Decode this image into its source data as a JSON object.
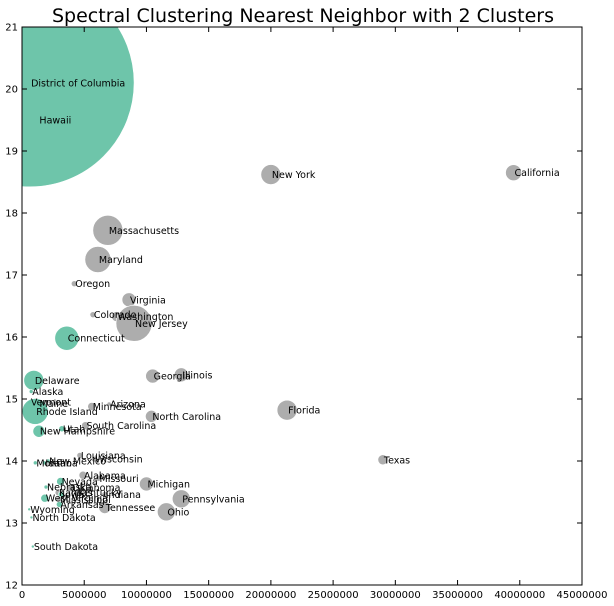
{
  "chart_data": {
    "type": "scatter",
    "title": "Spectral Clustering Nearest Neighbor with 2 Clusters",
    "xlabel": "",
    "ylabel": "",
    "xlim": [
      0,
      45000000
    ],
    "ylim": [
      12,
      21
    ],
    "xticks": [
      "0",
      "5000000",
      "10000000",
      "15000000",
      "20000000",
      "25000000",
      "30000000",
      "35000000",
      "40000000",
      "45000000"
    ],
    "yticks": [
      "12",
      "13",
      "14",
      "15",
      "16",
      "17",
      "18",
      "19",
      "20",
      "21"
    ],
    "grid": false,
    "colors": {
      "cluster_0": "#66c2a5",
      "cluster_1": "#a9a9a9"
    },
    "points": [
      {
        "label": "District of Columbia",
        "x": 650000,
        "y": 20.1,
        "cluster": 0,
        "size": 104
      },
      {
        "label": "Hawaii",
        "x": 1400000,
        "y": 19.5,
        "cluster": 0,
        "size": 0
      },
      {
        "label": "California",
        "x": 39500000,
        "y": 18.65,
        "cluster": 1,
        "size": 8
      },
      {
        "label": "New York",
        "x": 20000000,
        "y": 18.62,
        "cluster": 1,
        "size": 10
      },
      {
        "label": "Massachusetts",
        "x": 6900000,
        "y": 17.72,
        "cluster": 1,
        "size": 15
      },
      {
        "label": "Maryland",
        "x": 6100000,
        "y": 17.25,
        "cluster": 1,
        "size": 13
      },
      {
        "label": "Oregon",
        "x": 4200000,
        "y": 16.86,
        "cluster": 1,
        "size": 3
      },
      {
        "label": "Virginia",
        "x": 8600000,
        "y": 16.6,
        "cluster": 1,
        "size": 7
      },
      {
        "label": "Colorado",
        "x": 5700000,
        "y": 16.36,
        "cluster": 1,
        "size": 3
      },
      {
        "label": "Washington",
        "x": 7600000,
        "y": 16.33,
        "cluster": 1,
        "size": 5
      },
      {
        "label": "New Jersey",
        "x": 9000000,
        "y": 16.22,
        "cluster": 1,
        "size": 18
      },
      {
        "label": "Connecticut",
        "x": 3600000,
        "y": 15.98,
        "cluster": 0,
        "size": 12
      },
      {
        "label": "Delaware",
        "x": 950000,
        "y": 15.3,
        "cluster": 0,
        "size": 10
      },
      {
        "label": "Georgia",
        "x": 10500000,
        "y": 15.37,
        "cluster": 1,
        "size": 7
      },
      {
        "label": "Illinois",
        "x": 12800000,
        "y": 15.39,
        "cluster": 1,
        "size": 7
      },
      {
        "label": "Alaska",
        "x": 740000,
        "y": 15.12,
        "cluster": 0,
        "size": 2
      },
      {
        "label": "Arizona",
        "x": 7000000,
        "y": 14.92,
        "cluster": 1,
        "size": 2
      },
      {
        "label": "Minnesota",
        "x": 5600000,
        "y": 14.88,
        "cluster": 1,
        "size": 4
      },
      {
        "label": "Vermont",
        "x": 630000,
        "y": 14.95,
        "cluster": 0,
        "size": 2
      },
      {
        "label": "Maine",
        "x": 1330000,
        "y": 14.93,
        "cluster": 0,
        "size": 2
      },
      {
        "label": "Rhode Island",
        "x": 1060000,
        "y": 14.8,
        "cluster": 0,
        "size": 13
      },
      {
        "label": "Florida",
        "x": 21300000,
        "y": 14.82,
        "cluster": 1,
        "size": 10
      },
      {
        "label": "North Carolina",
        "x": 10400000,
        "y": 14.72,
        "cluster": 1,
        "size": 6
      },
      {
        "label": "South Carolina",
        "x": 5100000,
        "y": 14.57,
        "cluster": 1,
        "size": 4
      },
      {
        "label": "Utah",
        "x": 3200000,
        "y": 14.52,
        "cluster": 0,
        "size": 3
      },
      {
        "label": "New Hampshire",
        "x": 1360000,
        "y": 14.48,
        "cluster": 0,
        "size": 6
      },
      {
        "label": "Louisiana",
        "x": 4650000,
        "y": 14.09,
        "cluster": 1,
        "size": 3
      },
      {
        "label": "Wisconsin",
        "x": 5800000,
        "y": 14.03,
        "cluster": 1,
        "size": 3
      },
      {
        "label": "New Mexico",
        "x": 2100000,
        "y": 14.0,
        "cluster": 0,
        "size": 2
      },
      {
        "label": "Montana",
        "x": 1070000,
        "y": 13.97,
        "cluster": 0,
        "size": 2
      },
      {
        "label": "Idaho",
        "x": 1800000,
        "y": 13.97,
        "cluster": 0,
        "size": 2
      },
      {
        "label": "Texas",
        "x": 29000000,
        "y": 14.02,
        "cluster": 1,
        "size": 5
      },
      {
        "label": "Alabama",
        "x": 4900000,
        "y": 13.77,
        "cluster": 1,
        "size": 4
      },
      {
        "label": "Missouri",
        "x": 6150000,
        "y": 13.72,
        "cluster": 1,
        "size": 3
      },
      {
        "label": "Nevada",
        "x": 3100000,
        "y": 13.67,
        "cluster": 0,
        "size": 4
      },
      {
        "label": "Michigan",
        "x": 10000000,
        "y": 13.63,
        "cluster": 1,
        "size": 7
      },
      {
        "label": "Nebraska",
        "x": 1930000,
        "y": 13.58,
        "cluster": 0,
        "size": 2
      },
      {
        "label": "Oklahoma",
        "x": 3950000,
        "y": 13.57,
        "cluster": 1,
        "size": 4
      },
      {
        "label": "Kentucky",
        "x": 4450000,
        "y": 13.49,
        "cluster": 1,
        "size": 3
      },
      {
        "label": "Kansas",
        "x": 2900000,
        "y": 13.49,
        "cluster": 1,
        "size": 3
      },
      {
        "label": "Iowa",
        "x": 3150000,
        "y": 13.46,
        "cluster": 0,
        "size": 3
      },
      {
        "label": "Indiana",
        "x": 6650000,
        "y": 13.46,
        "cluster": 1,
        "size": 3
      },
      {
        "label": "Pennsylvania",
        "x": 12800000,
        "y": 13.39,
        "cluster": 1,
        "size": 9
      },
      {
        "label": "West Virginia",
        "x": 1830000,
        "y": 13.4,
        "cluster": 0,
        "size": 4
      },
      {
        "label": "Mississippi",
        "x": 2990000,
        "y": 13.38,
        "cluster": 1,
        "size": 3
      },
      {
        "label": "Arkansas",
        "x": 3000000,
        "y": 13.3,
        "cluster": 0,
        "size": 3
      },
      {
        "label": "Tennessee",
        "x": 6650000,
        "y": 13.25,
        "cluster": 1,
        "size": 6
      },
      {
        "label": "Wyoming",
        "x": 580000,
        "y": 13.22,
        "cluster": 0,
        "size": 1.5
      },
      {
        "label": "Ohio",
        "x": 11600000,
        "y": 13.18,
        "cluster": 1,
        "size": 9
      },
      {
        "label": "North Dakota",
        "x": 760000,
        "y": 13.09,
        "cluster": 0,
        "size": 1.5
      },
      {
        "label": "South Dakota",
        "x": 870000,
        "y": 12.62,
        "cluster": 0,
        "size": 1.5
      }
    ]
  }
}
